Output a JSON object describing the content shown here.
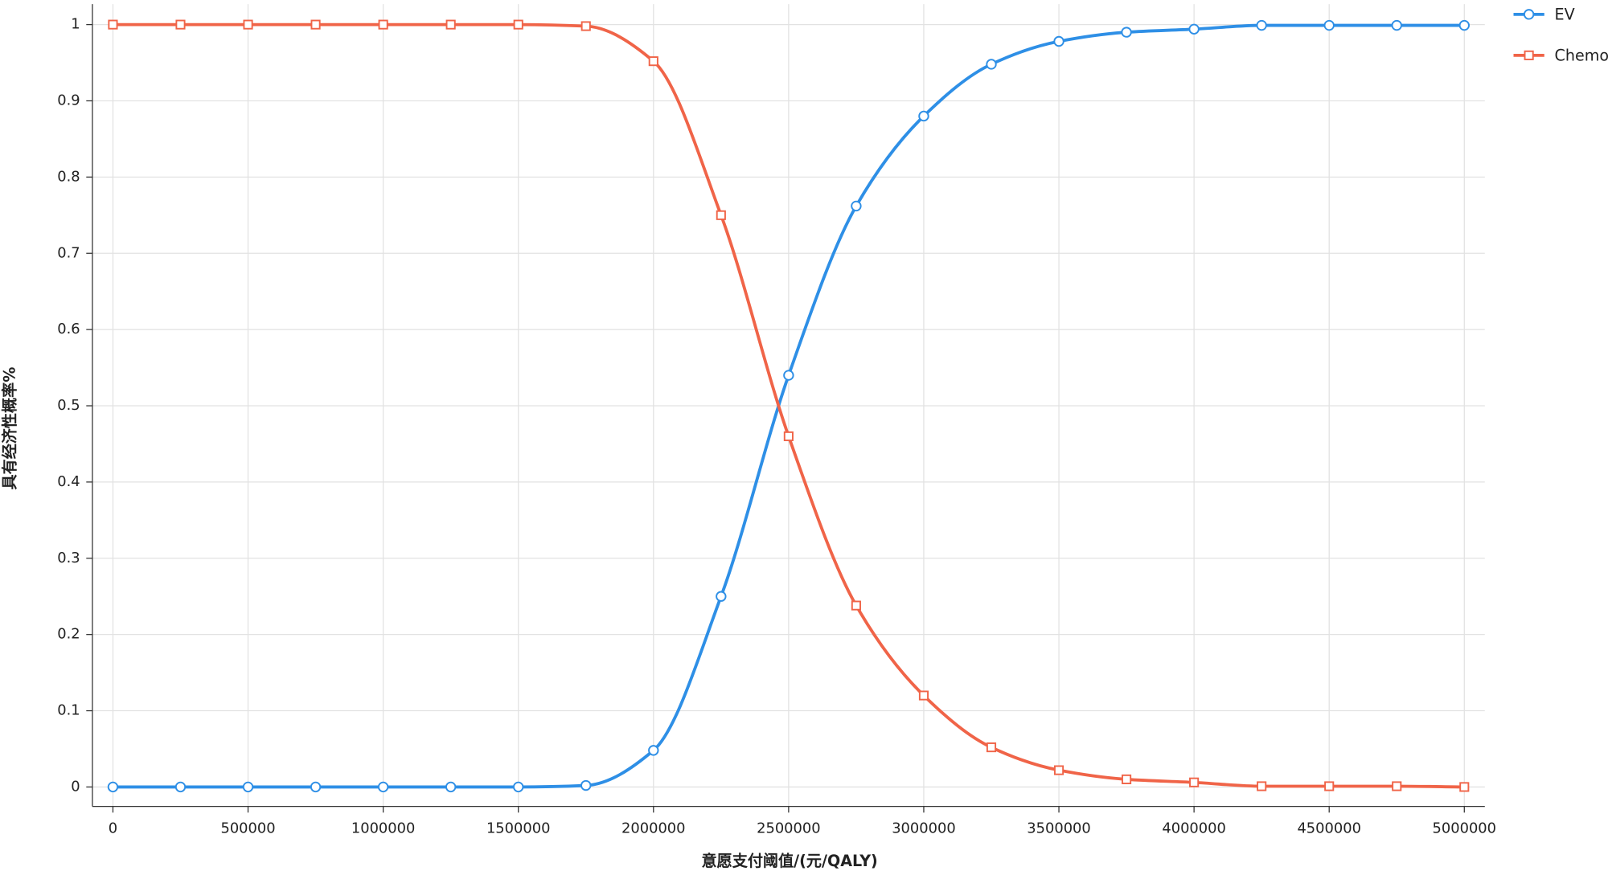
{
  "chart_data": {
    "type": "line",
    "xlabel": "意愿支付阈值/(元/QALY)",
    "ylabel": "具有经济性概率%",
    "x": [
      0,
      250000,
      500000,
      750000,
      1000000,
      1250000,
      1500000,
      1750000,
      2000000,
      2250000,
      2500000,
      2750000,
      3000000,
      3250000,
      3500000,
      3750000,
      4000000,
      4250000,
      4500000,
      4750000,
      5000000
    ],
    "series": [
      {
        "name": "EV",
        "color": "#2e8fe6",
        "marker": "circle",
        "values": [
          0,
          0,
          0,
          0,
          0,
          0,
          0,
          0.002,
          0.048,
          0.25,
          0.54,
          0.762,
          0.88,
          0.948,
          0.978,
          0.99,
          0.994,
          0.999,
          0.999,
          0.999,
          0.999
        ]
      },
      {
        "name": "Chemo",
        "color": "#f06448",
        "marker": "square",
        "values": [
          1,
          1,
          1,
          1,
          1,
          1,
          1,
          0.998,
          0.952,
          0.75,
          0.46,
          0.238,
          0.12,
          0.052,
          0.022,
          0.01,
          0.006,
          0.001,
          0.001,
          0.001,
          0
        ]
      }
    ],
    "xlim": [
      0,
      5000000
    ],
    "xticks": [
      0,
      500000,
      1000000,
      1500000,
      2000000,
      2500000,
      3000000,
      3500000,
      4000000,
      4500000,
      5000000
    ],
    "ylim": [
      0,
      1
    ],
    "yticks": [
      0,
      0.1,
      0.2,
      0.3,
      0.4,
      0.5,
      0.6,
      0.7,
      0.8,
      0.9,
      1
    ],
    "grid": true,
    "legend": "top-right"
  }
}
